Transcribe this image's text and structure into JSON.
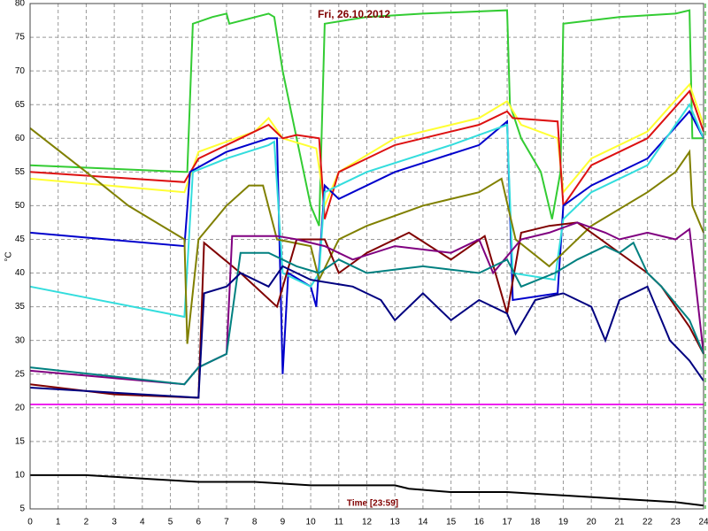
{
  "chart_data": {
    "type": "line",
    "title": "Fri, 26.10.2012",
    "xlabel": "Time [23:59]",
    "ylabel": "°C",
    "xlim": [
      0,
      24
    ],
    "ylim": [
      5,
      80
    ],
    "xticks": [
      0,
      1,
      2,
      3,
      4,
      5,
      6,
      7,
      8,
      9,
      10,
      11,
      12,
      13,
      14,
      15,
      16,
      17,
      18,
      19,
      20,
      21,
      22,
      23,
      24
    ],
    "yticks": [
      5,
      10,
      15,
      20,
      25,
      30,
      35,
      40,
      45,
      50,
      55,
      60,
      65,
      70,
      75,
      80
    ],
    "grid": true,
    "series": [
      {
        "color": "#33cc33",
        "x": [
          0,
          5.5,
          5.6,
          5.8,
          6.5,
          7,
          7.1,
          8.5,
          8.7,
          9,
          9.5,
          10,
          10.3,
          10.5,
          12,
          14,
          17,
          17.1,
          17.5,
          18.2,
          18.6,
          18.9,
          19,
          21,
          23,
          23.5,
          23.6,
          24
        ],
        "values": [
          56,
          55,
          55,
          77,
          78,
          78.5,
          77,
          78.5,
          78,
          70,
          60,
          50,
          47,
          77,
          78,
          78.5,
          79,
          65,
          60,
          55,
          48,
          55,
          77,
          78,
          78.5,
          79,
          60,
          60
        ]
      },
      {
        "color": "#ffff33",
        "x": [
          0,
          5.5,
          6,
          8,
          8.5,
          9,
          10.2,
          10.5,
          11,
          13,
          16,
          17,
          17.5,
          18.8,
          19,
          20,
          22,
          23.5,
          24
        ],
        "values": [
          54,
          52,
          58,
          61,
          63,
          60,
          58.5,
          50,
          55,
          60,
          63,
          65.5,
          62,
          60,
          52,
          57,
          61,
          68,
          62
        ]
      },
      {
        "color": "#dd1111",
        "x": [
          0,
          5.5,
          6,
          7.5,
          8.5,
          9,
          9.5,
          10.3,
          10.5,
          11,
          13,
          16,
          17,
          17.2,
          18.8,
          19,
          20,
          22,
          23.5,
          24
        ],
        "values": [
          55,
          53.5,
          57,
          60,
          62,
          60,
          60.5,
          60,
          48,
          55,
          59,
          62,
          64,
          63,
          62.5,
          50,
          56,
          60,
          67,
          61
        ]
      },
      {
        "color": "#0000cc",
        "x": [
          0,
          5.5,
          5.7,
          7,
          8.5,
          8.8,
          9,
          9.2,
          10,
          10.2,
          10.5,
          11,
          13,
          16,
          17,
          17.2,
          18.8,
          19,
          20,
          22,
          23.5,
          24
        ],
        "values": [
          46,
          44,
          55,
          58,
          60,
          60,
          25,
          40,
          38,
          35,
          53,
          51,
          55,
          59,
          62.5,
          36,
          37,
          50,
          53,
          57,
          64,
          60
        ]
      },
      {
        "color": "#33dddd",
        "x": [
          0,
          5.5,
          5.8,
          7,
          8.5,
          8.7,
          9,
          10,
          10.3,
          10.5,
          12,
          15,
          17,
          17.2,
          18.7,
          19,
          20,
          22,
          23.5,
          24
        ],
        "values": [
          38,
          33.5,
          55,
          57,
          59,
          59.5,
          40,
          38,
          40,
          52,
          55,
          59,
          62,
          40,
          39,
          48,
          52,
          56,
          65,
          60
        ]
      },
      {
        "color": "#808000",
        "x": [
          0,
          2,
          3.5,
          5.5,
          5.6,
          6,
          7,
          7.8,
          8.3,
          8.8,
          10,
          10.3,
          11,
          12,
          14,
          16,
          16.8,
          17.3,
          18.5,
          19,
          20,
          22,
          23,
          23.5,
          23.6,
          24
        ],
        "values": [
          61.5,
          55,
          50,
          45,
          29.5,
          45,
          50,
          53,
          53,
          45,
          44,
          39,
          45,
          47,
          50,
          52,
          54,
          45,
          41,
          43,
          47,
          52,
          55,
          58,
          50,
          46
        ]
      },
      {
        "color": "#800000",
        "x": [
          0,
          3,
          6,
          6.2,
          7.5,
          8.8,
          9.5,
          10.5,
          11,
          12,
          13.5,
          15,
          16.2,
          17,
          17.5,
          18.5,
          19.5,
          22,
          22.5,
          23.5,
          24
        ],
        "values": [
          23.5,
          22,
          21.5,
          44.5,
          40,
          35,
          45,
          45,
          40,
          43,
          46,
          42,
          45.5,
          34,
          46,
          47,
          47.5,
          40,
          38,
          32,
          28
        ]
      },
      {
        "color": "#800080",
        "x": [
          0,
          5.5,
          6,
          7,
          7.2,
          8.8,
          9.5,
          10.5,
          11.5,
          13,
          15,
          16,
          16.5,
          17.5,
          18.5,
          19.5,
          20.5,
          21,
          22,
          23,
          23.5,
          24
        ],
        "values": [
          25.5,
          23.5,
          26,
          28,
          45.5,
          45.5,
          45,
          44,
          42,
          44,
          43,
          45,
          40,
          45,
          46,
          47.5,
          46,
          45,
          46,
          45,
          46.5,
          28
        ]
      },
      {
        "color": "#008080",
        "x": [
          0,
          5.5,
          6,
          7,
          7.5,
          8.5,
          9.5,
          10.3,
          11,
          12,
          14,
          16,
          17,
          17.5,
          18.7,
          19.5,
          20.5,
          21,
          21.5,
          22,
          22.5,
          23.5,
          24
        ],
        "values": [
          26,
          23.5,
          26,
          28,
          43,
          43,
          41,
          40,
          42,
          40,
          41,
          40,
          42,
          38,
          40,
          42,
          44,
          43,
          44.5,
          40,
          38,
          33,
          28
        ]
      },
      {
        "color": "#000080",
        "x": [
          0,
          6,
          6.2,
          7,
          7.5,
          8.5,
          9,
          10,
          11.5,
          12.5,
          13,
          14,
          15,
          16,
          17,
          17.3,
          18,
          19,
          20,
          20.5,
          21,
          22,
          22.8,
          23.5,
          24
        ],
        "values": [
          23,
          21.5,
          37,
          38,
          40,
          38,
          41,
          39,
          38,
          36,
          33,
          37,
          33,
          36,
          34,
          31,
          36,
          37,
          35,
          30,
          36,
          38,
          30,
          27,
          24
        ]
      },
      {
        "color": "#ee22ee",
        "x": [
          0,
          24
        ],
        "values": [
          20.5,
          20.5
        ]
      },
      {
        "color": "#000000",
        "x": [
          0,
          2,
          4,
          6,
          8,
          10,
          13,
          13.5,
          15,
          17,
          19,
          21,
          23,
          24
        ],
        "values": [
          10,
          10,
          9.5,
          9,
          9,
          8.5,
          8.5,
          8,
          7.5,
          7.5,
          7,
          6.5,
          6,
          5.5
        ]
      }
    ]
  }
}
